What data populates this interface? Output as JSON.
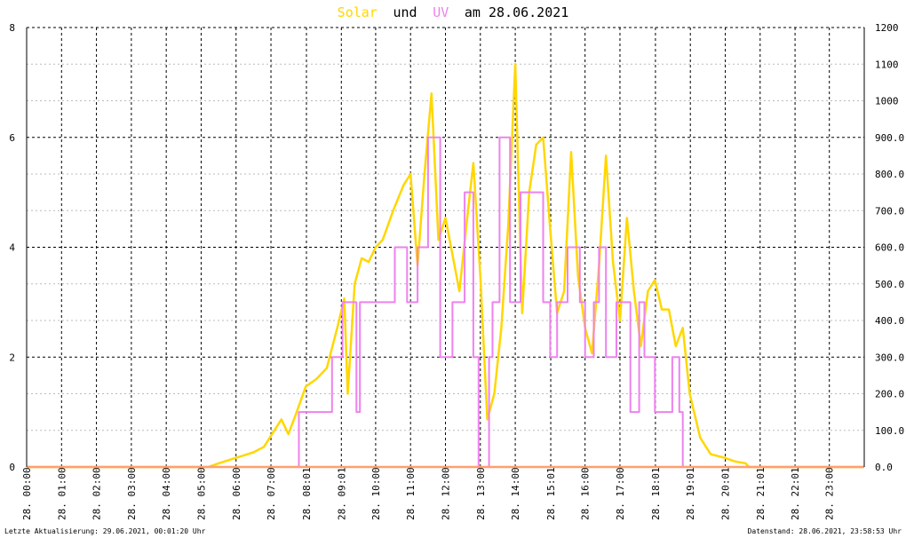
{
  "chart_data": {
    "type": "line",
    "title": {
      "solar_label": "Solar",
      "und": "und",
      "uv_label": "UV",
      "am_date": "am 28.06.2021"
    },
    "colors": {
      "solar": "#ffd700",
      "uv": "#ee82ee",
      "uv_base": "#ff9f6f"
    },
    "left_axis": {
      "min": 0,
      "max": 8,
      "ticks": [
        "0",
        "2",
        "4",
        "6",
        "8"
      ]
    },
    "right_axis": {
      "min": 0,
      "max": 1200,
      "ticks": [
        "0.0",
        "100.0",
        "200.0",
        "300.0",
        "400.0",
        "500.0",
        "600.0",
        "700.0",
        "800.0",
        "900.0",
        "1000",
        "1100",
        "1200"
      ]
    },
    "x_axis": {
      "min": 0,
      "max": 24,
      "unit": "hours",
      "ticks": [
        {
          "h": 0.0,
          "label": "28. 00:00"
        },
        {
          "h": 1.0,
          "label": "28. 01:00"
        },
        {
          "h": 2.0,
          "label": "28. 02:00"
        },
        {
          "h": 3.0,
          "label": "28. 03:00"
        },
        {
          "h": 4.0,
          "label": "28. 04:00"
        },
        {
          "h": 5.0,
          "label": "28. 05:00"
        },
        {
          "h": 6.0,
          "label": "28. 06:00"
        },
        {
          "h": 7.0,
          "label": "28. 07:00"
        },
        {
          "h": 8.017,
          "label": "28. 08:01"
        },
        {
          "h": 9.017,
          "label": "28. 09:01"
        },
        {
          "h": 10.0,
          "label": "28. 10:00"
        },
        {
          "h": 11.0,
          "label": "28. 11:00"
        },
        {
          "h": 12.0,
          "label": "28. 12:00"
        },
        {
          "h": 13.0,
          "label": "28. 13:00"
        },
        {
          "h": 14.0,
          "label": "28. 14:00"
        },
        {
          "h": 15.017,
          "label": "28. 15:01"
        },
        {
          "h": 16.0,
          "label": "28. 16:00"
        },
        {
          "h": 17.0,
          "label": "28. 17:00"
        },
        {
          "h": 18.017,
          "label": "28. 18:01"
        },
        {
          "h": 19.017,
          "label": "28. 19:01"
        },
        {
          "h": 20.017,
          "label": "28. 20:01"
        },
        {
          "h": 21.017,
          "label": "28. 21:01"
        },
        {
          "h": 22.017,
          "label": "28. 22:01"
        },
        {
          "h": 23.0,
          "label": "28. 23:00"
        }
      ]
    },
    "grid": "dashed",
    "series": [
      {
        "name": "Solar",
        "axis": "right",
        "color": "#ffd700",
        "x": [
          0,
          5.2,
          5.5,
          6.0,
          6.5,
          6.8,
          7.0,
          7.3,
          7.5,
          7.7,
          8.0,
          8.3,
          8.6,
          8.9,
          9.1,
          9.2,
          9.4,
          9.6,
          9.8,
          10.0,
          10.2,
          10.5,
          10.8,
          11.0,
          11.2,
          11.4,
          11.6,
          11.8,
          12.0,
          12.2,
          12.4,
          12.6,
          12.8,
          13.0,
          13.2,
          13.4,
          13.6,
          13.8,
          14.0,
          14.2,
          14.4,
          14.6,
          14.8,
          15.0,
          15.2,
          15.4,
          15.6,
          15.8,
          16.0,
          16.2,
          16.4,
          16.6,
          16.8,
          17.0,
          17.2,
          17.4,
          17.6,
          17.8,
          18.0,
          18.2,
          18.4,
          18.6,
          18.8,
          19.0,
          19.3,
          19.6,
          20.0,
          20.3,
          20.6,
          20.7,
          24
        ],
        "y": [
          0,
          0,
          10,
          25,
          40,
          55,
          85,
          130,
          90,
          140,
          220,
          240,
          270,
          380,
          460,
          200,
          500,
          570,
          560,
          600,
          620,
          700,
          770,
          800,
          550,
          800,
          1020,
          620,
          680,
          580,
          480,
          660,
          830,
          520,
          130,
          200,
          380,
          660,
          1100,
          420,
          750,
          880,
          900,
          650,
          420,
          480,
          860,
          520,
          380,
          310,
          550,
          850,
          560,
          400,
          680,
          480,
          330,
          480,
          510,
          430,
          430,
          330,
          380,
          200,
          80,
          35,
          25,
          15,
          10,
          0,
          0
        ]
      },
      {
        "name": "UV",
        "axis": "left",
        "color": "#ee82ee",
        "x": [
          0,
          7.8,
          7.8,
          8.75,
          8.75,
          9.05,
          9.05,
          9.45,
          9.45,
          9.55,
          9.55,
          10.55,
          10.55,
          10.9,
          10.9,
          11.2,
          11.2,
          11.5,
          11.5,
          11.85,
          11.85,
          12.2,
          12.2,
          12.55,
          12.55,
          12.8,
          12.8,
          12.95,
          12.95,
          13.25,
          13.25,
          13.35,
          13.35,
          13.55,
          13.55,
          13.85,
          13.85,
          14.15,
          14.15,
          14.8,
          14.8,
          15.0,
          15.0,
          15.2,
          15.2,
          15.5,
          15.5,
          15.85,
          15.85,
          16.0,
          16.0,
          16.25,
          16.25,
          16.4,
          16.4,
          16.6,
          16.6,
          16.9,
          16.9,
          17.3,
          17.3,
          17.55,
          17.55,
          17.7,
          17.7,
          18.0,
          18.0,
          18.5,
          18.5,
          18.7,
          18.7,
          18.8,
          18.8,
          24
        ],
        "y": [
          0,
          0,
          1,
          1,
          2,
          2,
          3,
          3,
          1,
          1,
          3,
          3,
          4,
          4,
          3,
          3,
          4,
          4,
          6,
          6,
          2,
          2,
          3,
          3,
          5,
          5,
          2,
          2,
          0,
          0,
          2,
          2,
          3,
          3,
          6,
          6,
          3,
          3,
          5,
          5,
          3,
          3,
          2,
          2,
          3,
          3,
          4,
          4,
          3,
          3,
          2,
          2,
          3,
          3,
          4,
          4,
          2,
          2,
          3,
          3,
          1,
          1,
          3,
          3,
          2,
          2,
          1,
          1,
          2,
          2,
          1,
          1,
          0,
          0
        ]
      }
    ]
  },
  "footer": {
    "last_update": "Letzte Aktualisierung: 29.06.2021, 00:01:20 Uhr",
    "data_state": "Datenstand: 28.06.2021, 23:58:53 Uhr"
  }
}
